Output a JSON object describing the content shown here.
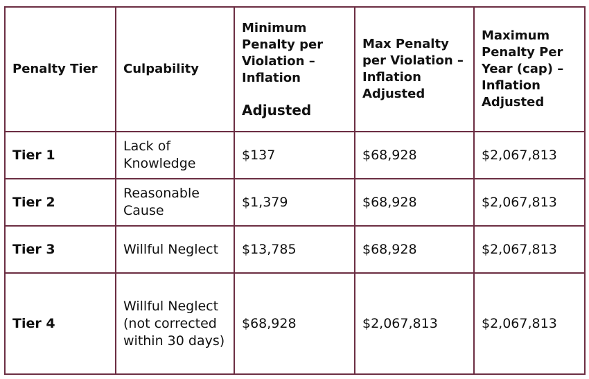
{
  "headers": {
    "tier": "Penalty Tier",
    "culpability": "Culpability",
    "min_line1": "Minimum Penalty per Violation – Inflation",
    "min_line2": "Adjusted",
    "max": "Max Penalty per Violation – Inflation Adjusted",
    "year": "Maximum Penalty Per Year (cap) – Inflation Adjusted"
  },
  "rows": [
    {
      "tier": "Tier 1",
      "culpability": "Lack of Knowledge",
      "min": "$137",
      "max": "$68,928",
      "year": "$2,067,813"
    },
    {
      "tier": "Tier 2",
      "culpability": "Reasonable Cause",
      "min": "$1,379",
      "max": "$68,928",
      "year": "$2,067,813"
    },
    {
      "tier": "Tier 3",
      "culpability": "Willful Neglect",
      "min": "$13,785",
      "max": "$68,928",
      "year": "$2,067,813"
    },
    {
      "tier": "Tier 4",
      "culpability": "Willful Neglect (not corrected within 30 days)",
      "min": "$68,928",
      "max": "$2,067,813",
      "year": "$2,067,813"
    }
  ],
  "colors": {
    "border": "#6b2d42",
    "text": "#111111",
    "background": "#ffffff"
  }
}
